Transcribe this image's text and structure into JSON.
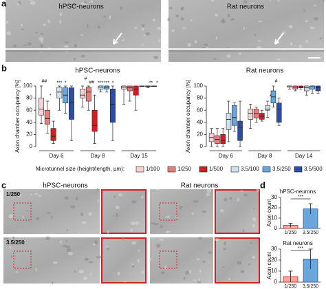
{
  "panels": {
    "a": "a",
    "b": "b",
    "c": "c",
    "d": "d"
  },
  "panel_a": {
    "left_title": "hPSC-neurons",
    "right_title": "Rat neurons"
  },
  "panel_c": {
    "left_title": "hPSC-neurons",
    "right_title": "Rat neurons",
    "row_labels": [
      "1/250",
      "3.5/250"
    ]
  },
  "chart_data": [
    {
      "type": "box",
      "title": "hPSC-neurons",
      "ylabel": "Axon chamber occupancy [%]",
      "legend_title": "Microtunnel size (height/length, µm):",
      "categories": [
        "Day 6",
        "Day 8",
        "Day 15"
      ],
      "ylim": [
        0,
        100
      ],
      "yticks": [
        0,
        20,
        40,
        60,
        80,
        100
      ],
      "series": [
        {
          "name": "1/100",
          "color": "#f6d3d3",
          "values": [
            [
              38,
              52,
              62,
              80,
              100
            ],
            [
              65,
              80,
              85,
              95,
              100
            ],
            [
              70,
              95,
              98,
              100,
              100
            ]
          ]
        },
        {
          "name": "1/250",
          "color": "#ee7b7b",
          "values": [
            [
              22,
              37,
              46,
              60,
              75
            ],
            [
              60,
              75,
              90,
              98,
              100
            ],
            [
              75,
              92,
              97,
              100,
              100
            ]
          ]
        },
        {
          "name": "1/500",
          "color": "#d21f1f",
          "values": [
            [
              5,
              10,
              17,
              30,
              42
            ],
            [
              5,
              25,
              35,
              60,
              85
            ],
            [
              60,
              85,
              95,
              100,
              100
            ]
          ]
        },
        {
          "name": "3.5/100",
          "color": "#cfe0f0",
          "values": [
            [
              60,
              80,
              90,
              98,
              100
            ],
            [
              90,
              95,
              98,
              100,
              100
            ],
            [
              100,
              100,
              100,
              100,
              100
            ]
          ]
        },
        {
          "name": "3.5/250",
          "color": "#6aa5dc",
          "values": [
            [
              55,
              72,
              85,
              97,
              100
            ],
            [
              90,
              95,
              98,
              100,
              100
            ],
            [
              97,
              99,
              100,
              100,
              100
            ]
          ]
        },
        {
          "name": "3.5/500",
          "color": "#2c4ea8",
          "values": [
            [
              10,
              45,
              72,
              97,
              100
            ],
            [
              10,
              40,
              70,
              95,
              100
            ],
            [
              100,
              100,
              100,
              100,
              100
            ]
          ]
        }
      ],
      "annotations": [
        "##",
        "*",
        "***",
        "*",
        "#",
        "##",
        "***",
        "***",
        "*",
        "*",
        "**"
      ]
    },
    {
      "type": "box",
      "title": "Rat neurons",
      "ylabel": "Axon chamber occupancy [%]",
      "categories": [
        "Day 6",
        "Day 8",
        "Day 14"
      ],
      "ylim": [
        0,
        100
      ],
      "yticks": [
        0,
        20,
        40,
        60,
        80,
        100
      ],
      "series": [
        {
          "color": "#f6d3d3",
          "values": [
            [
              0,
              8,
              15,
              22,
              30
            ],
            [
              30,
              45,
              55,
              62,
              70
            ],
            [
              95,
              98,
              100,
              100,
              100
            ]
          ]
        },
        {
          "color": "#ee7b7b",
          "values": [
            [
              0,
              5,
              12,
              18,
              30
            ],
            [
              40,
              47,
              55,
              62,
              65
            ],
            [
              92,
              95,
              98,
              100,
              100
            ]
          ]
        },
        {
          "color": "#d21f1f",
          "values": [
            [
              0,
              5,
              10,
              20,
              30
            ],
            [
              42,
              45,
              50,
              55,
              60
            ],
            [
              95,
              97,
              98,
              100,
              100
            ]
          ]
        },
        {
          "color": "#cfe0f0",
          "values": [
            [
              8,
              28,
              45,
              55,
              75
            ],
            [
              48,
              60,
              62,
              68,
              75
            ],
            [
              85,
              92,
              97,
              100,
              100
            ]
          ]
        },
        {
          "color": "#6aa5dc",
          "values": [
            [
              25,
              35,
              48,
              68,
              72
            ],
            [
              65,
              72,
              82,
              92,
              100
            ],
            [
              88,
              95,
              100,
              100,
              100
            ]
          ]
        },
        {
          "color": "#2c4ea8",
          "values": [
            [
              0,
              10,
              32,
              42,
              75
            ],
            [
              35,
              40,
              62,
              72,
              80
            ],
            [
              88,
              92,
              97,
              100,
              100
            ]
          ]
        }
      ],
      "annotations": [
        "*",
        "#"
      ]
    },
    {
      "type": "bar",
      "title": "hPSC-neurons",
      "ylabel": "Axon count",
      "categories": [
        "1/250",
        "3.5/250"
      ],
      "values": [
        3,
        19
      ],
      "errors": [
        2,
        5
      ],
      "colors": [
        "#f4a9a0",
        "#6aa5dc"
      ],
      "ylim": [
        0,
        30
      ],
      "yticks": [
        0,
        10,
        20,
        30
      ],
      "annotation": "***"
    },
    {
      "type": "bar",
      "title": "Rat neurons",
      "ylabel": "Axon count",
      "categories": [
        "1/250",
        "3.5/250"
      ],
      "values": [
        5,
        21
      ],
      "errors": [
        5,
        9
      ],
      "colors": [
        "#f4a9a0",
        "#6aa5dc"
      ],
      "ylim": [
        0,
        30
      ],
      "yticks": [
        0,
        10,
        20,
        30
      ],
      "annotation": "***"
    }
  ]
}
